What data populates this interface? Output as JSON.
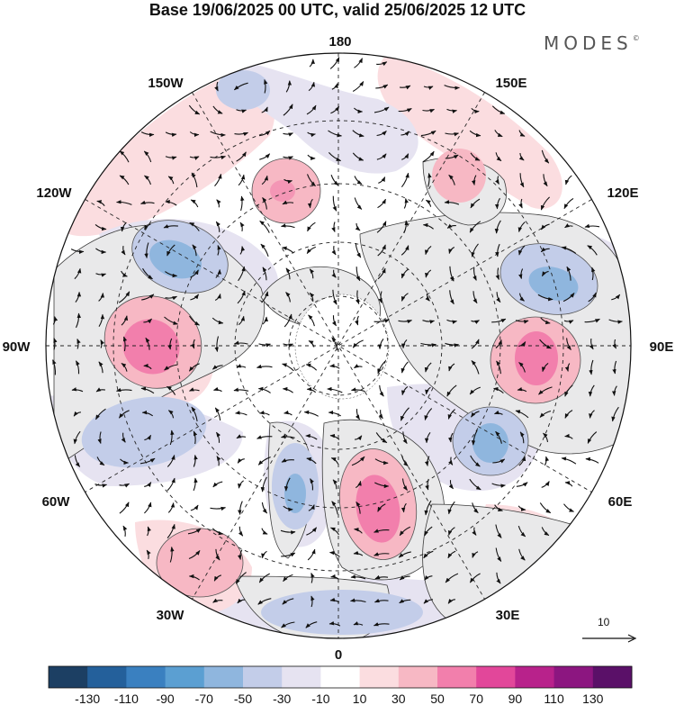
{
  "header": {
    "title": "Base 19/06/2025 00 UTC, valid 25/06/2025 12 UTC",
    "brand": "MODES",
    "brand_mark": "©"
  },
  "map": {
    "projection": "north-polar-stereographic",
    "longitude_labels": [
      "180",
      "150E",
      "120E",
      "90E",
      "60E",
      "30E",
      "0",
      "30W",
      "60W",
      "90W",
      "120W",
      "150W"
    ]
  },
  "wind_scale": {
    "label": "10"
  },
  "colorbar": {
    "ticks": [
      "-130",
      "-110",
      "-90",
      "-70",
      "-50",
      "-30",
      "-10",
      "10",
      "30",
      "50",
      "70",
      "90",
      "110",
      "130"
    ],
    "colors": [
      "#1c3f63",
      "#24609b",
      "#3a80c0",
      "#5b9fd2",
      "#8fb6de",
      "#c3cde9",
      "#e6e3f1",
      "#ffffff",
      "#fbdde0",
      "#f7b8c4",
      "#f27fac",
      "#e2479a",
      "#b8228b",
      "#8c1680",
      "#5a1068"
    ]
  },
  "colors": {
    "land": "#e9e9ea",
    "coast": "#3c3c3c",
    "graticule": "#222222",
    "arrow": "#111111"
  }
}
